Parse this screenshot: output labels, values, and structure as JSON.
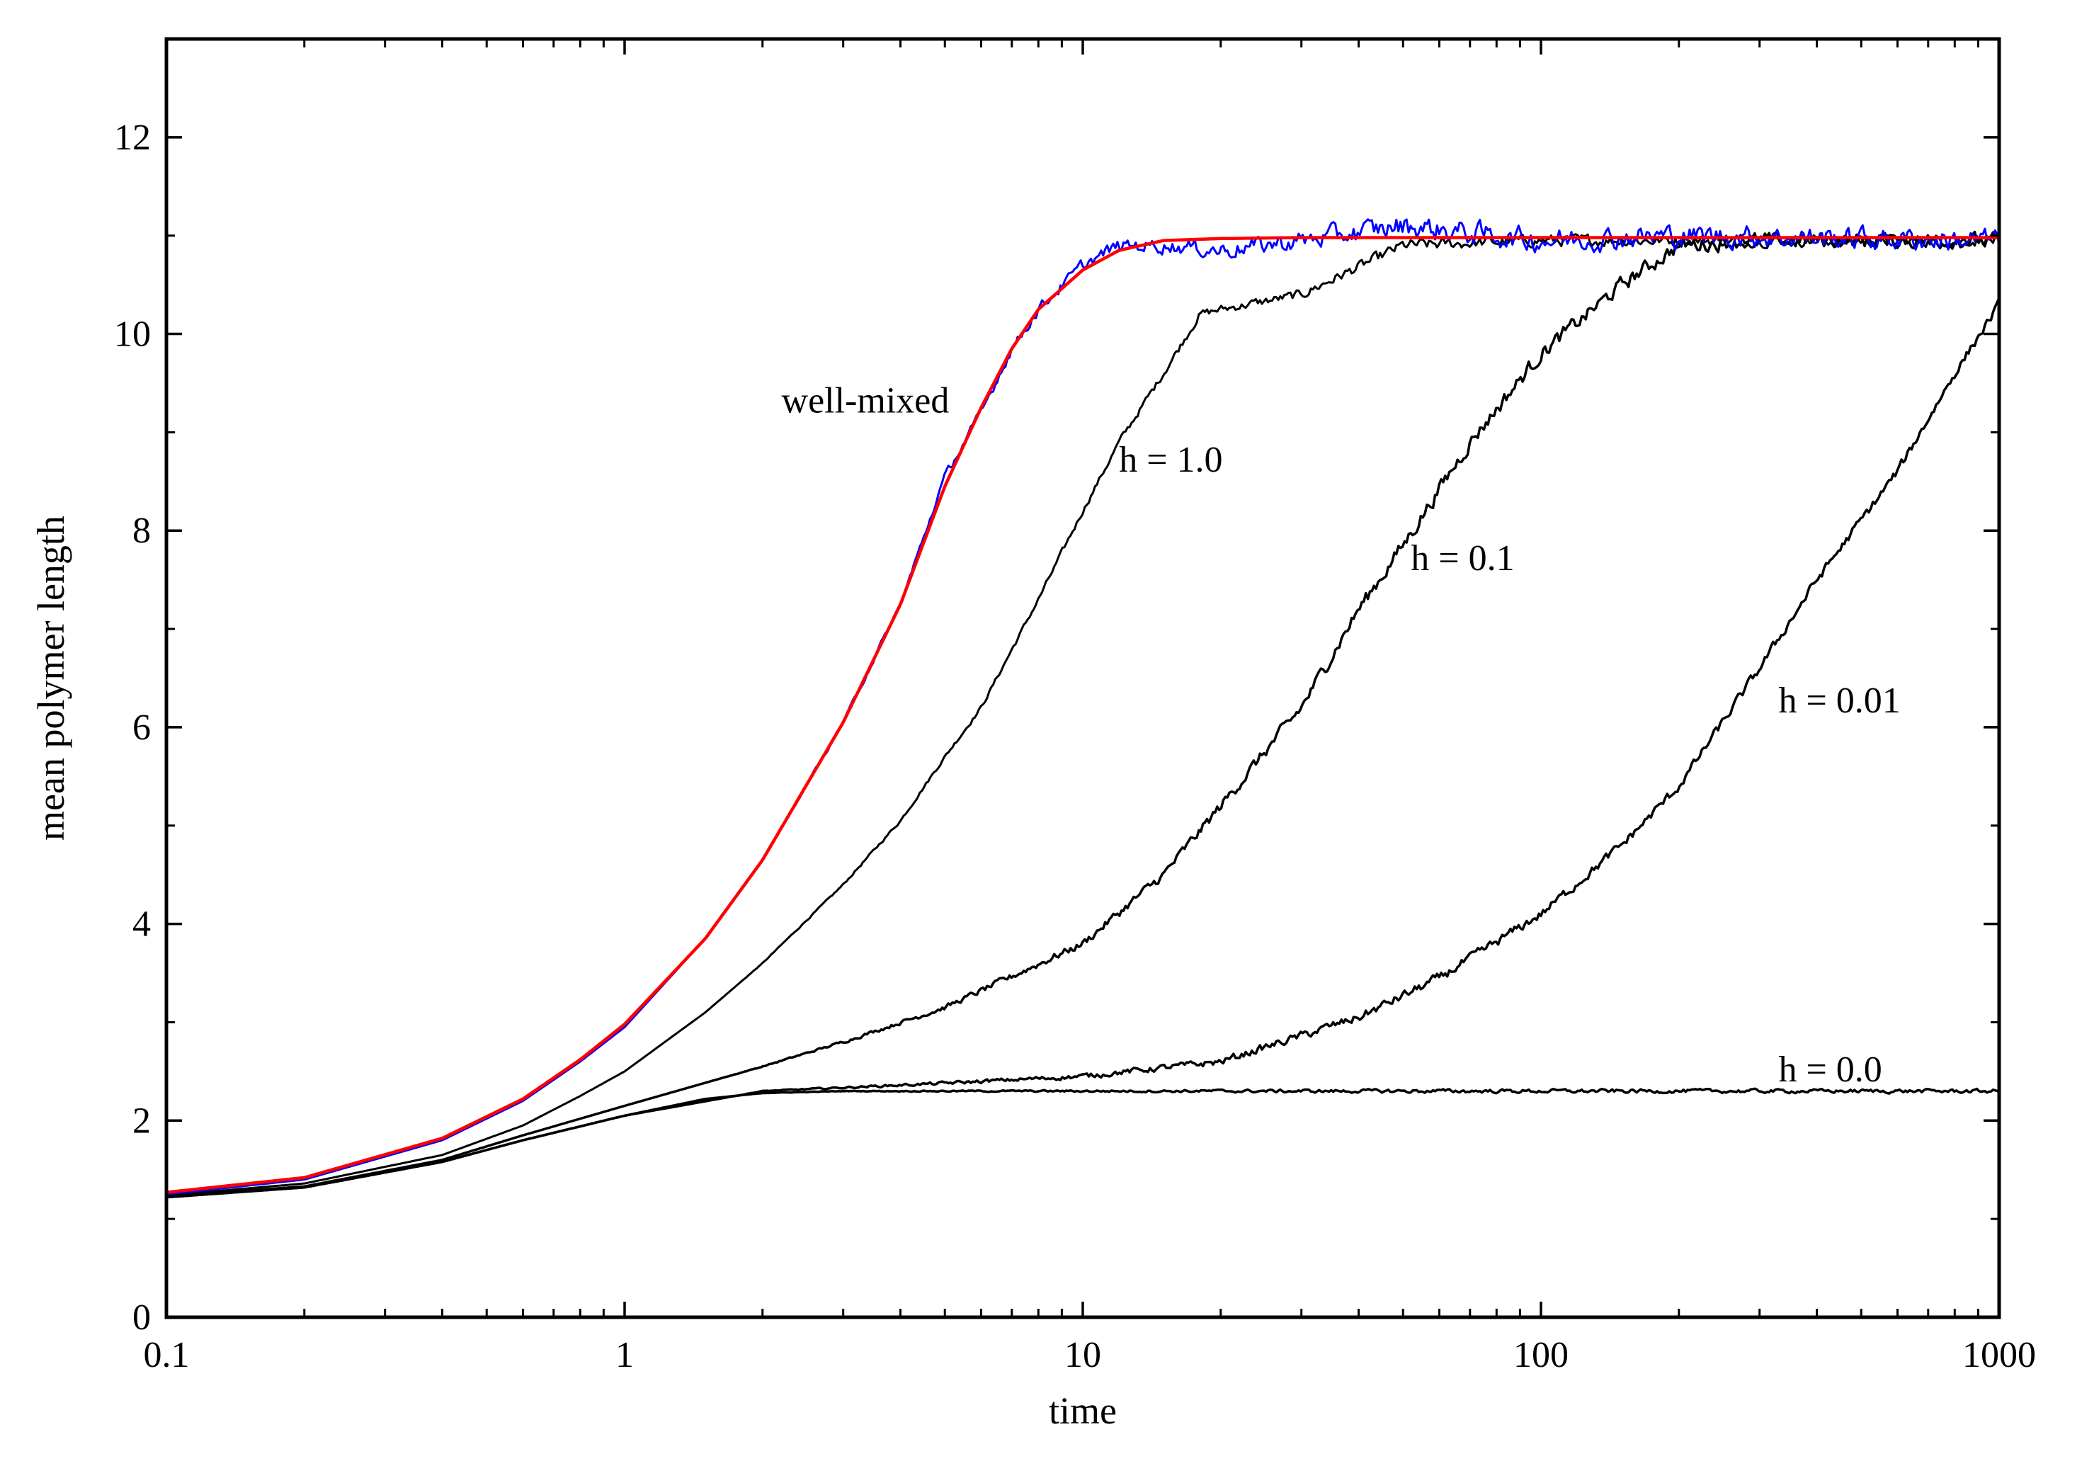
{
  "chart_data": {
    "type": "line",
    "title": "",
    "xlabel": "time",
    "ylabel": "mean polymer length",
    "xscale": "log",
    "xlim": [
      0.1,
      1000
    ],
    "ylim": [
      0,
      13
    ],
    "x_ticks": [
      0.1,
      1,
      10,
      100,
      1000
    ],
    "x_tick_labels": [
      "0.1",
      "1",
      "10",
      "100",
      "1000"
    ],
    "y_ticks": [
      0,
      2,
      4,
      6,
      8,
      10,
      12
    ],
    "y_tick_labels": [
      "0",
      "2",
      "4",
      "6",
      "8",
      "10",
      "12"
    ],
    "grid": false,
    "legend": "none",
    "series": [
      {
        "name": "well-mixed",
        "color": "#ff0000",
        "x": [
          0.1,
          0.2,
          0.4,
          0.6,
          0.8,
          1,
          1.5,
          2,
          3,
          4,
          5,
          6,
          7,
          8,
          10,
          12,
          15,
          20,
          30,
          50,
          100,
          200,
          1000
        ],
        "y": [
          1.27,
          1.42,
          1.82,
          2.22,
          2.62,
          2.98,
          3.85,
          4.65,
          6.05,
          7.25,
          8.45,
          9.25,
          9.85,
          10.25,
          10.65,
          10.85,
          10.95,
          10.97,
          10.98,
          10.98,
          10.98,
          10.98,
          10.98
        ],
        "noise": 0
      },
      {
        "name": "",
        "color": "#0000ff",
        "x": [
          0.1,
          0.2,
          0.4,
          0.6,
          0.8,
          1,
          1.5,
          2,
          3,
          4,
          5,
          6,
          7,
          8,
          10,
          12,
          15,
          20,
          30,
          50,
          100,
          200,
          1000
        ],
        "y": [
          1.25,
          1.4,
          1.8,
          2.2,
          2.6,
          2.95,
          3.85,
          4.65,
          6.05,
          7.25,
          8.55,
          9.2,
          9.85,
          10.25,
          10.7,
          10.9,
          10.9,
          10.85,
          10.95,
          11.1,
          10.95,
          11.0,
          10.95
        ],
        "noise": 0.12
      },
      {
        "name": "h = 1.0",
        "color": "#000000",
        "x": [
          0.1,
          0.2,
          0.4,
          0.6,
          0.8,
          1,
          1.5,
          2,
          3,
          4,
          5,
          6,
          8,
          10,
          12,
          15,
          18,
          20,
          30,
          50,
          100,
          200,
          1000
        ],
        "y": [
          1.24,
          1.36,
          1.65,
          1.95,
          2.25,
          2.5,
          3.1,
          3.6,
          4.4,
          5.05,
          5.7,
          6.2,
          7.3,
          8.2,
          8.9,
          9.6,
          10.2,
          10.25,
          10.4,
          10.9,
          10.95,
          10.95,
          10.95
        ],
        "noise": 0.06
      },
      {
        "name": "h = 0.1",
        "color": "#000000",
        "x": [
          0.1,
          0.2,
          0.4,
          0.6,
          1,
          2,
          3,
          5,
          10,
          15,
          20,
          30,
          40,
          50,
          70,
          100,
          150,
          200,
          300,
          1000
        ],
        "y": [
          1.23,
          1.33,
          1.6,
          1.85,
          2.15,
          2.55,
          2.8,
          3.15,
          3.8,
          4.5,
          5.2,
          6.2,
          7.2,
          7.85,
          8.9,
          9.8,
          10.5,
          10.9,
          10.95,
          10.95
        ],
        "noise": 0.08
      },
      {
        "name": "h = 0.01",
        "color": "#000000",
        "x": [
          0.1,
          0.2,
          0.4,
          0.6,
          1,
          2,
          5,
          10,
          20,
          40,
          60,
          100,
          150,
          200,
          300,
          400,
          600,
          800,
          1000
        ],
        "y": [
          1.22,
          1.32,
          1.58,
          1.8,
          2.05,
          2.3,
          2.38,
          2.45,
          2.6,
          3.05,
          3.45,
          4.1,
          4.8,
          5.4,
          6.6,
          7.5,
          8.6,
          9.6,
          10.3
        ],
        "noise": 0.05
      },
      {
        "name": "h = 0.0",
        "color": "#000000",
        "x": [
          0.1,
          0.2,
          0.4,
          0.6,
          1,
          1.5,
          2,
          3,
          5,
          10,
          100,
          1000
        ],
        "y": [
          1.22,
          1.32,
          1.58,
          1.8,
          2.05,
          2.22,
          2.28,
          2.3,
          2.3,
          2.3,
          2.3,
          2.3
        ],
        "noise": 0.02
      }
    ],
    "annotations": [
      {
        "text": "well-mixed",
        "x": 2.2,
        "y": 9.2
      },
      {
        "text": "h = 1.0",
        "x": 12,
        "y": 8.6
      },
      {
        "text": "h = 0.1",
        "x": 52,
        "y": 7.6
      },
      {
        "text": "h = 0.01",
        "x": 330,
        "y": 6.15
      },
      {
        "text": "h = 0.0",
        "x": 330,
        "y": 2.4
      }
    ]
  }
}
